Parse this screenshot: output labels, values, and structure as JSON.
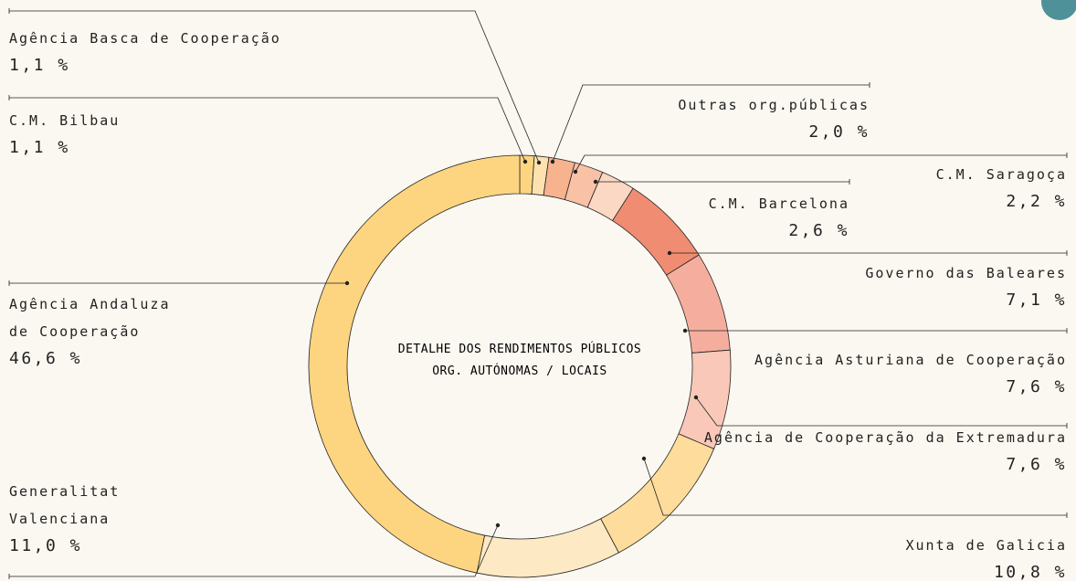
{
  "chart_data": {
    "type": "donut",
    "title": "DETALHE DOS RENDIMENTOS PÚBLICOS",
    "subtitle": "ORG. AUTÓNOMAS / LOCAIS",
    "categories": [
      "C.M. Bilbau",
      "Agência Basca de Cooperação",
      "Outras org.públicas",
      "C.M. Saragoça",
      "C.M. Barcelona",
      "Governo das Baleares",
      "Agência Asturiana de Cooperação",
      "Agência de Cooperação da Extremadura",
      "Xunta de Galicia",
      "Generalitat Valenciana",
      "Agência Andaluza de Cooperação"
    ],
    "values": [
      1.1,
      1.1,
      2.0,
      2.2,
      2.6,
      7.1,
      7.6,
      7.6,
      10.8,
      11.0,
      46.6
    ],
    "value_labels": [
      "1,1 %",
      "1,1 %",
      "2,0 %",
      "2,2 %",
      "2,6 %",
      "7,1 %",
      "7,6 %",
      "7,6 %",
      "10,8 %",
      "11,0 %",
      "46,6 %"
    ],
    "colors": [
      "#fdd580",
      "#fde2b0",
      "#f7b28e",
      "#f9c2a6",
      "#fbd8c4",
      "#f08c72",
      "#f5ae9e",
      "#f9c8b8",
      "#fddc9c",
      "#fde9c4",
      "#fdd580"
    ]
  }
}
